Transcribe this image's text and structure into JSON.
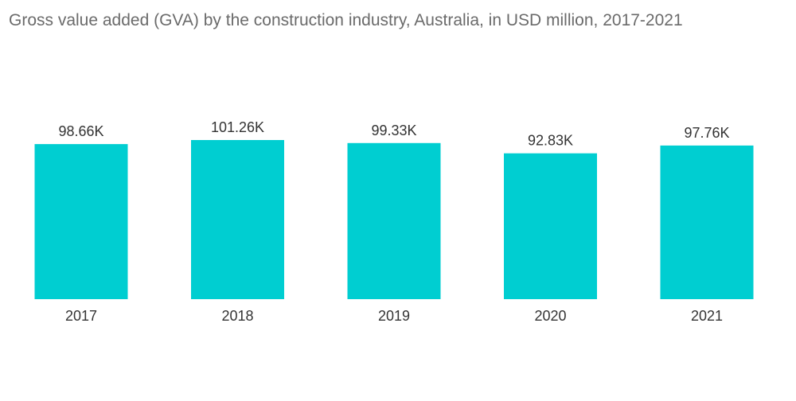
{
  "chart_data": {
    "type": "bar",
    "title": "Gross value added (GVA) by the construction industry, Australia, in USD million, 2017-2021",
    "categories": [
      "2017",
      "2018",
      "2019",
      "2020",
      "2021"
    ],
    "values": [
      98.66,
      101.26,
      99.33,
      92.83,
      97.76
    ],
    "value_unit": "K",
    "data_labels": [
      "98.66K",
      "101.26K",
      "99.33K",
      "92.83K",
      "97.76K"
    ],
    "xlabel": "",
    "ylabel": "",
    "ylim": [
      0,
      101.26
    ],
    "grid": false,
    "legend": "none",
    "bar_color": "#00ced1"
  }
}
